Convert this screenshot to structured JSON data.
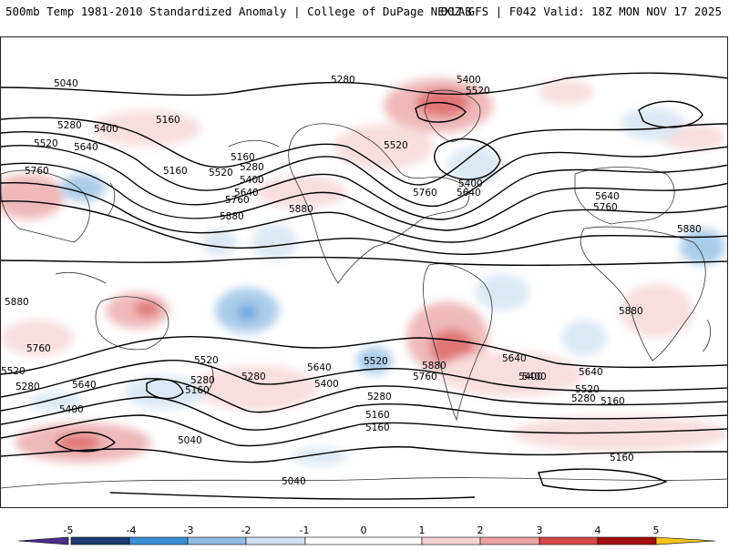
{
  "header": {
    "title": "500mb Temp 1981-2010 Standardized Anomaly | College of DuPage NEXLAB",
    "run_info": "00Z GFS | F042 Valid: 18Z MON NOV 17 2025"
  },
  "contour_labels": [
    "5040",
    "5280",
    "5400",
    "5520",
    "5280",
    "5400",
    "5520",
    "5640",
    "5160",
    "5760",
    "5160",
    "5160",
    "5280",
    "5520",
    "5400",
    "5640",
    "5880",
    "5880",
    "5760",
    "5640",
    "5520",
    "5400",
    "5640",
    "5760",
    "5880",
    "5880",
    "5760",
    "5880",
    "5760",
    "5520",
    "5280",
    "5160",
    "5640",
    "5400",
    "5520",
    "5640",
    "5280",
    "5160",
    "5400",
    "5280",
    "5160",
    "5880",
    "5760",
    "5640",
    "5400",
    "5520",
    "5280",
    "5160",
    "5040",
    "5040",
    "5160",
    "5520",
    "5640",
    "5400",
    "5280"
  ],
  "colorbar": {
    "ticks": [
      "-5",
      "-4",
      "-3",
      "-2",
      "-1",
      "0",
      "1",
      "2",
      "3",
      "4",
      "5"
    ],
    "colors": {
      "neg5": "#4b2f8c",
      "neg4": "#1e3a72",
      "neg3": "#3b8fd4",
      "neg2": "#8fbce3",
      "neg1": "#cfe1f2",
      "zero": "#ffffff",
      "pos1": "#f6d3d3",
      "pos2": "#eaa2a2",
      "pos3": "#d84a4a",
      "pos4": "#a40d0d",
      "pos5": "#f5c518"
    }
  },
  "colors": {
    "contour": "#000000",
    "coastline": "#333333",
    "warm_anomaly": "#e36a6a",
    "cold_anomaly": "#6aa8dd"
  }
}
